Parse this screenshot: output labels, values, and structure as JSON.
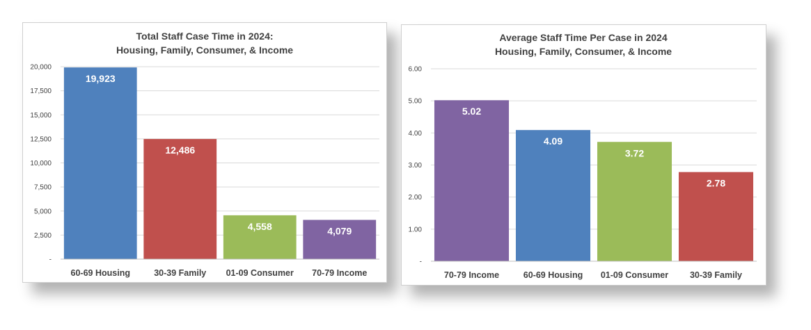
{
  "chart_data": [
    {
      "type": "bar",
      "title": "Total Staff Case Time in 2024:",
      "subtitle": "Housing, Family, Consumer, & Income",
      "categories": [
        "60-69 Housing",
        "30-39 Family",
        "01-09 Consumer",
        "70-79 Income"
      ],
      "values": [
        19923,
        12486,
        4558,
        4079
      ],
      "data_labels": [
        "19,923",
        "12,486",
        "4,558",
        "4,079"
      ],
      "colors": [
        "#4F81BD",
        "#C0504D",
        "#9BBB59",
        "#8064A2"
      ],
      "ylim": [
        0,
        20000
      ],
      "yticks": [
        0,
        2500,
        5000,
        7500,
        10000,
        12500,
        15000,
        17500,
        20000
      ],
      "ytick_labels": [
        "-",
        "2,500",
        "5,000",
        "7,500",
        "10,000",
        "12,500",
        "15,000",
        "17,500",
        "20,000"
      ],
      "grid": true,
      "xlabel": "",
      "ylabel": ""
    },
    {
      "type": "bar",
      "title": "Average Staff Time Per Case in 2024",
      "subtitle": "Housing, Family, Consumer, & Income",
      "categories": [
        "70-79 Income",
        "60-69 Housing",
        "01-09 Consumer",
        "30-39 Family"
      ],
      "values": [
        5.02,
        4.09,
        3.72,
        2.78
      ],
      "data_labels": [
        "5.02",
        "4.09",
        "3.72",
        "2.78"
      ],
      "colors": [
        "#8064A2",
        "#4F81BD",
        "#9BBB59",
        "#C0504D"
      ],
      "ylim": [
        0,
        6
      ],
      "yticks": [
        0,
        1,
        2,
        3,
        4,
        5,
        6
      ],
      "ytick_labels": [
        "-",
        "1.00",
        "2.00",
        "3.00",
        "4.00",
        "5.00",
        "6.00"
      ],
      "grid": true,
      "xlabel": "",
      "ylabel": ""
    }
  ]
}
